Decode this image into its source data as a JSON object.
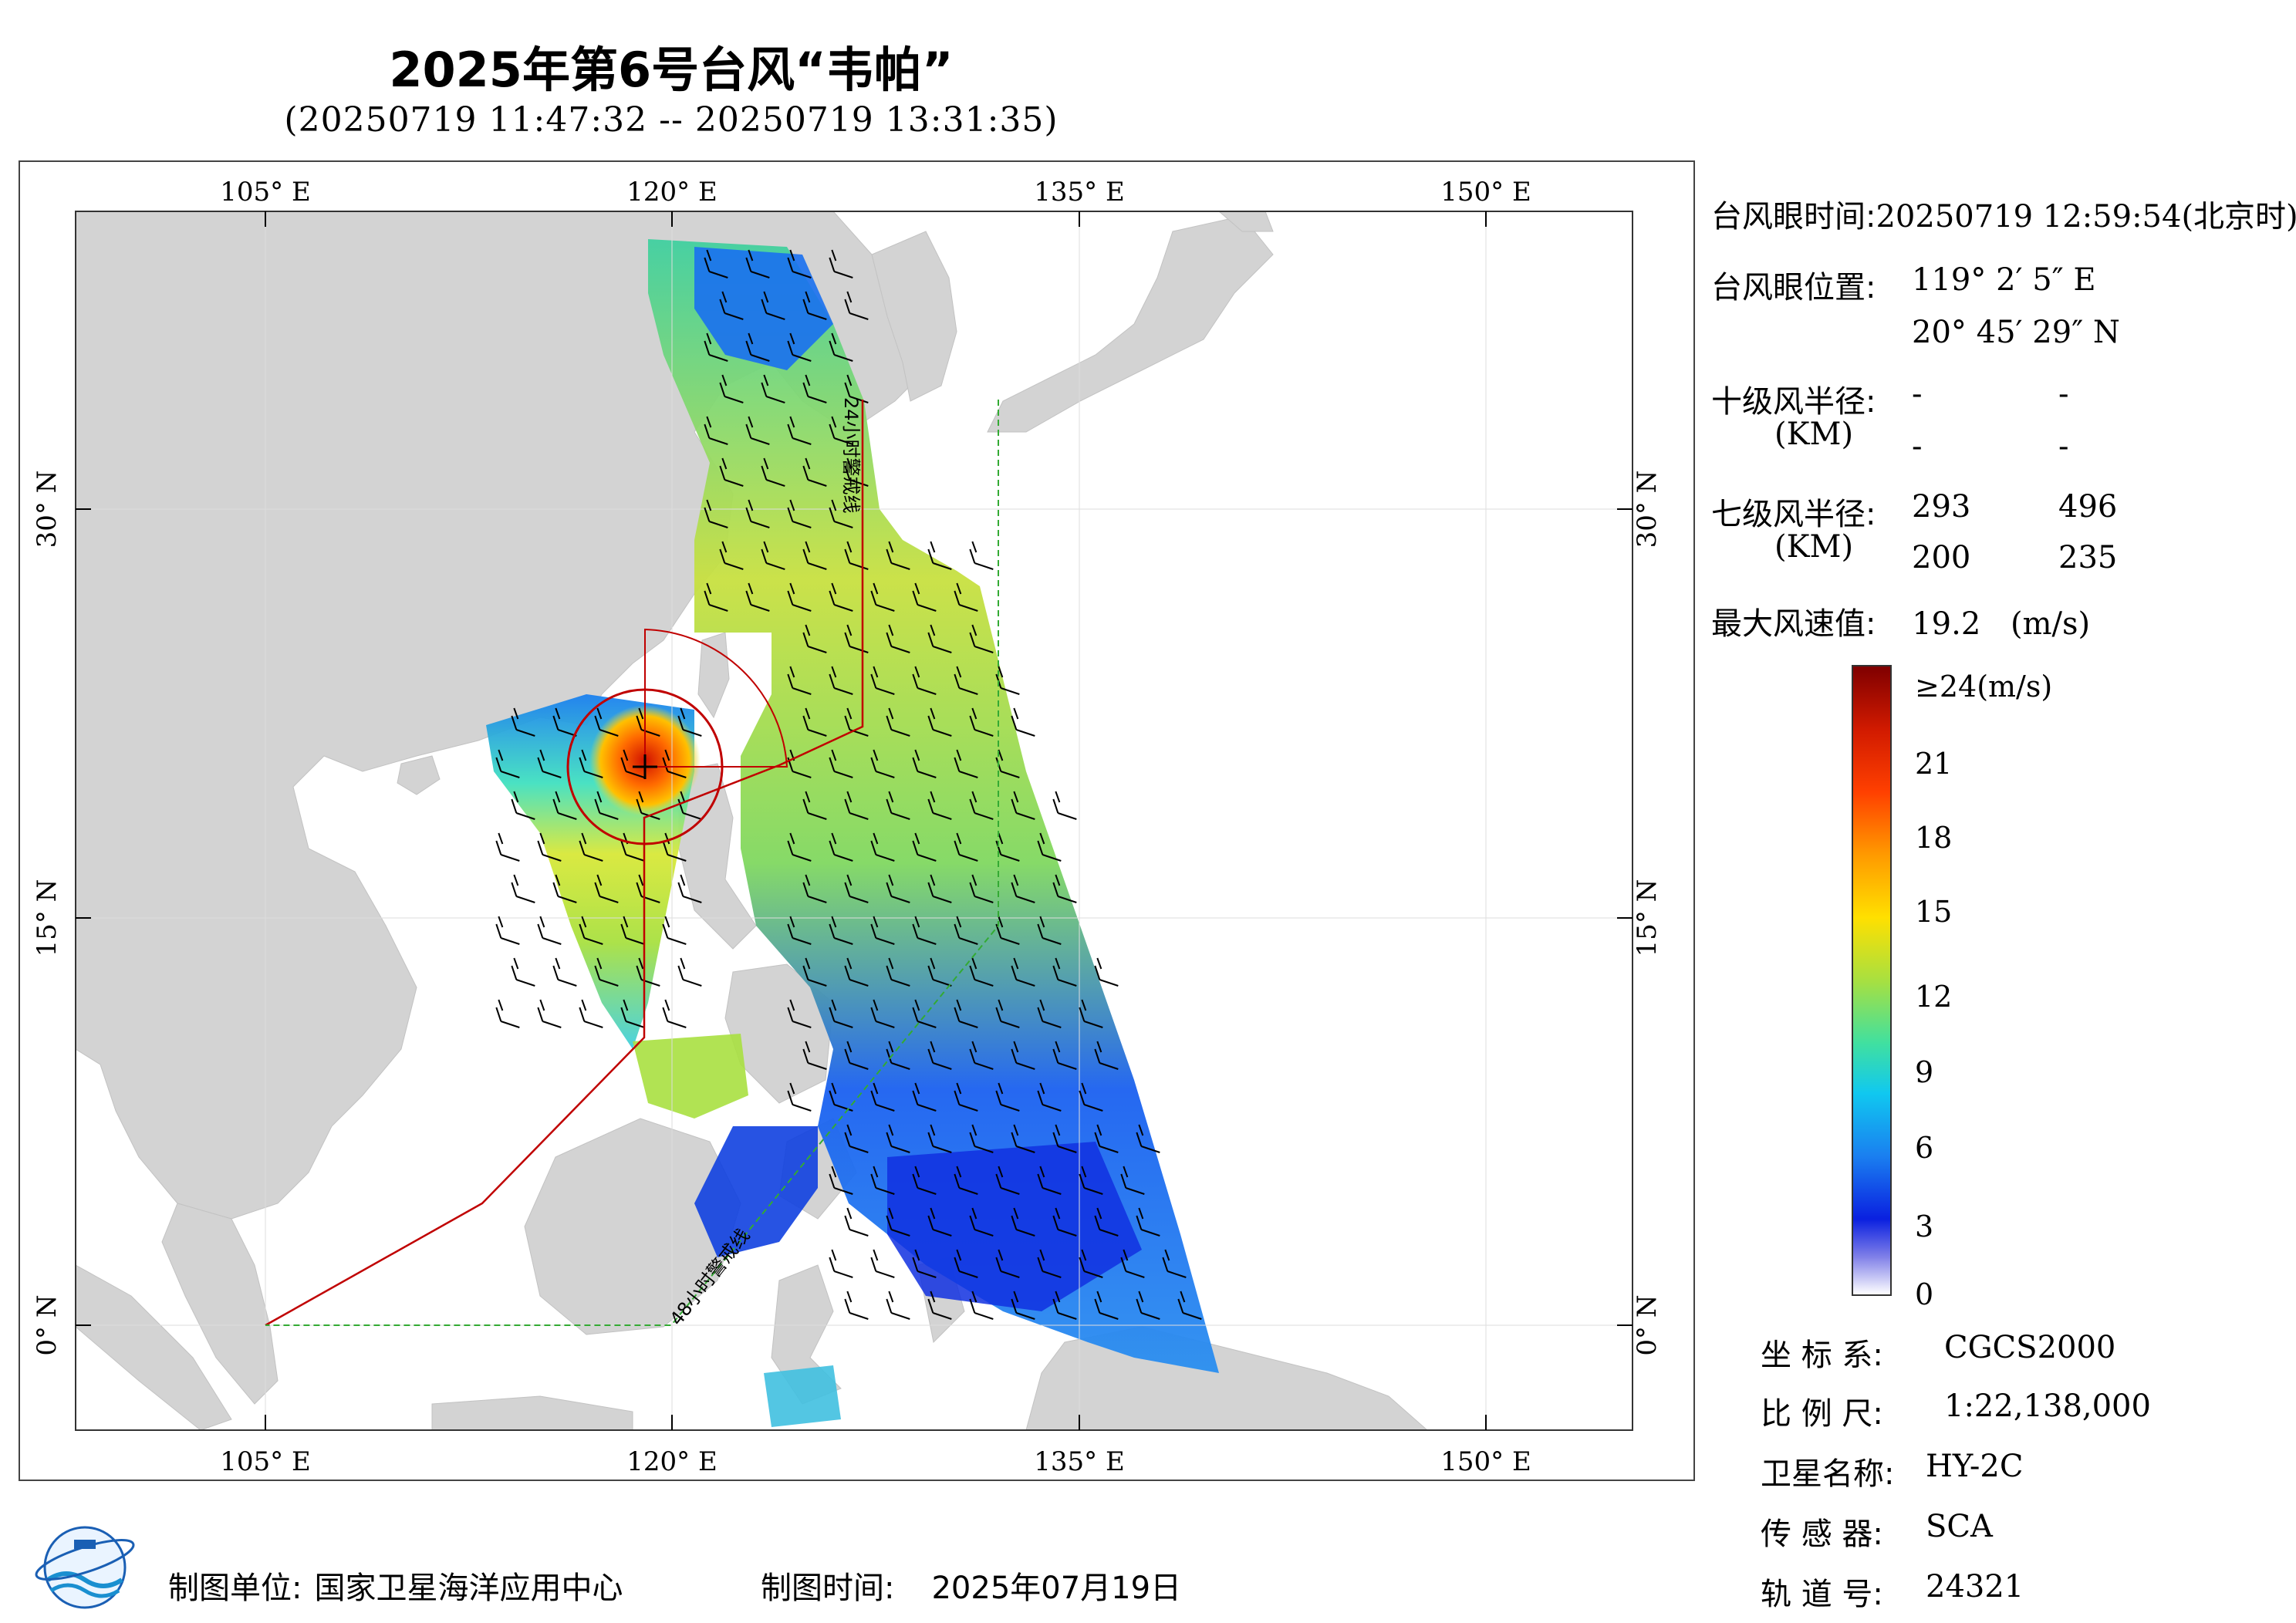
{
  "header": {
    "title": "2025年第6号台风“韦帕”",
    "subtitle": "(20250719 11:47:32 -- 20250719 13:31:35)"
  },
  "map": {
    "lon_labels": [
      "105° E",
      "120° E",
      "135° E",
      "150° E"
    ],
    "lat_labels": [
      "30° N",
      "15° N",
      "0° N"
    ],
    "warning_24h_label": "24小时警戒线",
    "warning_48h_label": "48小时警戒线",
    "colors": {
      "land": "#d3d3d3",
      "sea": "#ffffff",
      "warning_24h": "#c00000",
      "warning_48h": "#33aa33",
      "wind_circle": "#c00000"
    }
  },
  "info": {
    "eye_time_label": "台风眼时间:",
    "eye_time_value": "20250719 12:59:54(北京时)",
    "eye_pos_label": "台风眼位置:",
    "eye_lon": "119° 2′ 5″ E",
    "eye_lat": "20° 45′ 29″ N",
    "r10_label": "十级风半径:",
    "r10_unit": "(KM)",
    "r10_values": [
      "-",
      "-",
      "-",
      "-"
    ],
    "r7_label": "七级风半径:",
    "r7_unit": "(KM)",
    "r7_values": [
      "293",
      "496",
      "200",
      "235"
    ],
    "max_wind_label": "最大风速值:",
    "max_wind_value": "19.2",
    "max_wind_unit": "(m/s)"
  },
  "colorbar": {
    "top_label": "≥24(m/s)",
    "ticks": [
      "21",
      "18",
      "15",
      "12",
      "9",
      "6",
      "3",
      "0"
    ]
  },
  "meta": {
    "crs_label": "坐 标 系:",
    "crs_value": "CGCS2000",
    "scale_label": "比 例 尺:",
    "scale_value": "1:22,138,000",
    "sat_label": "卫星名称:",
    "sat_value": "HY-2C",
    "sensor_label": "传 感 器:",
    "sensor_value": "SCA",
    "orbit_label": "轨 道 号:",
    "orbit_value": "24321"
  },
  "footer": {
    "producer_label": "制图单位:",
    "producer_value": "国家卫星海洋应用中心",
    "date_label": "制图时间:",
    "date_value": "2025年07月19日"
  }
}
